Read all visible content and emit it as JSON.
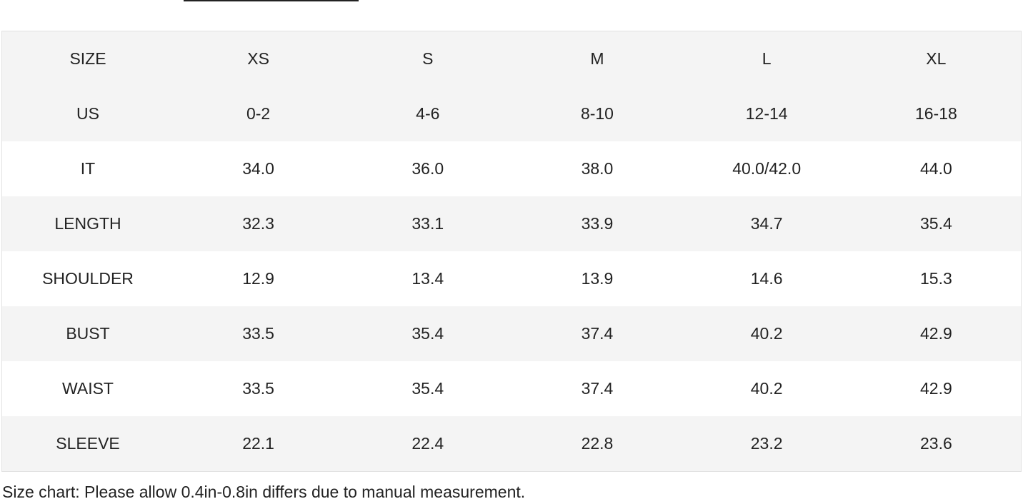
{
  "table": {
    "header": [
      "SIZE",
      "XS",
      "S",
      "M",
      "L",
      "XL"
    ],
    "rows": [
      {
        "label": "US",
        "values": [
          "0-2",
          "4-6",
          "8-10",
          "12-14",
          "16-18"
        ]
      },
      {
        "label": "IT",
        "values": [
          "34.0",
          "36.0",
          "38.0",
          "40.0/42.0",
          "44.0"
        ]
      },
      {
        "label": "LENGTH",
        "values": [
          "32.3",
          "33.1",
          "33.9",
          "34.7",
          "35.4"
        ]
      },
      {
        "label": "SHOULDER",
        "values": [
          "12.9",
          "13.4",
          "13.9",
          "14.6",
          "15.3"
        ]
      },
      {
        "label": "BUST",
        "values": [
          "33.5",
          "35.4",
          "37.4",
          "40.2",
          "42.9"
        ]
      },
      {
        "label": "WAIST",
        "values": [
          "33.5",
          "35.4",
          "37.4",
          "40.2",
          "42.9"
        ]
      },
      {
        "label": "SLEEVE",
        "values": [
          "22.1",
          "22.4",
          "22.8",
          "23.2",
          "23.6"
        ]
      }
    ]
  },
  "note": "Size chart: Please allow 0.4in-0.8in differs due to manual measurement.",
  "colors": {
    "stripe": "#f4f4f4",
    "text": "#222222",
    "border": "#e2e2e2"
  }
}
